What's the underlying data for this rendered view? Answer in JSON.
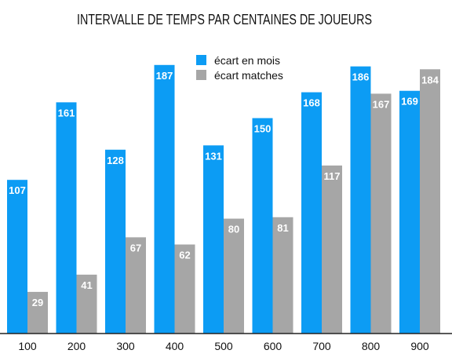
{
  "chart_data": {
    "type": "bar",
    "title": "INTERVALLE DE TEMPS PAR CENTAINES DE JOUEURS",
    "categories": [
      "100",
      "200",
      "300",
      "400",
      "500",
      "600",
      "700",
      "800",
      "900"
    ],
    "series": [
      {
        "name": "écart en mois",
        "color": "#0C9CF4",
        "values": [
          107,
          161,
          128,
          187,
          131,
          150,
          168,
          186,
          169
        ]
      },
      {
        "name": "écart matches",
        "color": "#A6A6A6",
        "values": [
          29,
          41,
          67,
          62,
          80,
          81,
          117,
          167,
          184
        ]
      }
    ],
    "ylim": [
      0,
      200
    ],
    "grid": false,
    "legend_position": "top-center",
    "data_labels": true
  }
}
